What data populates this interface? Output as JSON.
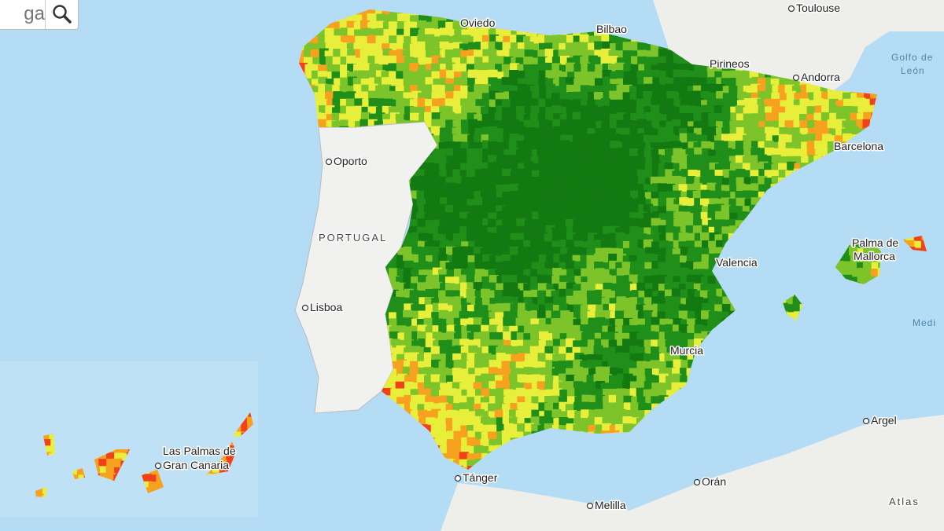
{
  "search": {
    "query": "ga"
  },
  "labels": [
    {
      "text": "Toulouse"
    },
    {
      "text": "Oviedo"
    },
    {
      "text": "Bilbao"
    },
    {
      "text": "Pirineos"
    },
    {
      "text": "Andorra"
    },
    {
      "text": "Golfo de"
    },
    {
      "text": "León"
    },
    {
      "text": "Barcelona"
    },
    {
      "text": "Oporto"
    },
    {
      "text": "PORTUGAL"
    },
    {
      "text": "Palma de"
    },
    {
      "text": "Mallorca"
    },
    {
      "text": "Valencia"
    },
    {
      "text": "Lisboa"
    },
    {
      "text": "Murcia"
    },
    {
      "text": "Las Palmas de"
    },
    {
      "text": "Gran Canaria"
    },
    {
      "text": "Argel"
    },
    {
      "text": "Tánger"
    },
    {
      "text": "Orán"
    },
    {
      "text": "Melilla"
    },
    {
      "text": "Atlas"
    },
    {
      "text": "Medi"
    }
  ]
}
